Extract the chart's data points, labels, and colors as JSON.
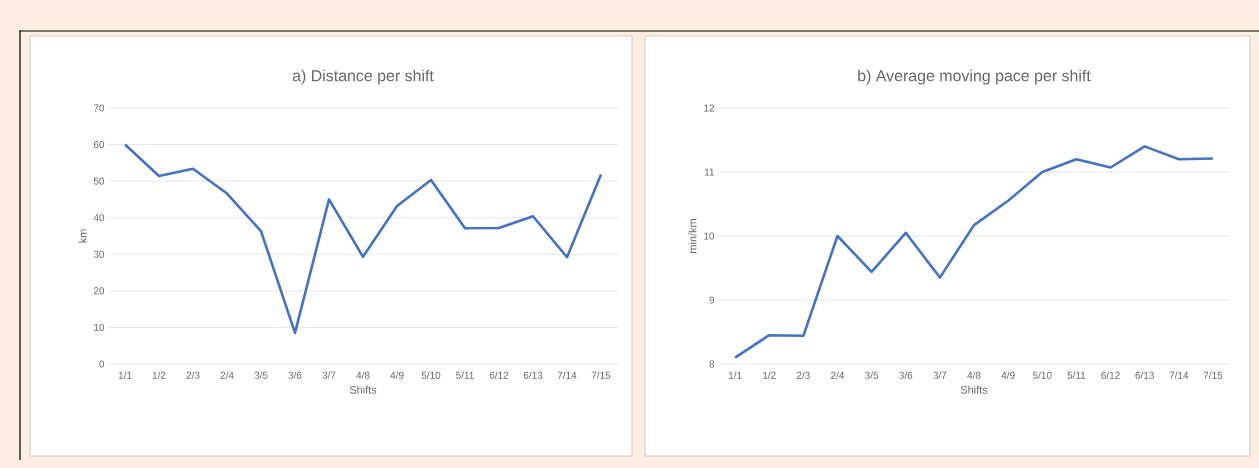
{
  "chart_data": [
    {
      "type": "line",
      "title": "a) Distance per shift",
      "xlabel": "Shifts",
      "ylabel": "km",
      "categories": [
        "1/1",
        "1/2",
        "2/3",
        "2/4",
        "3/5",
        "3/6",
        "3/7",
        "4/8",
        "4/9",
        "5/10",
        "5/11",
        "6/12",
        "6/13",
        "7/14",
        "7/15"
      ],
      "series": [
        {
          "color": "#4472c4",
          "values": [
            60,
            51.4,
            53.4,
            46.6,
            36.3,
            8.5,
            45,
            29.3,
            43.2,
            50.3,
            37.1,
            37.2,
            40.4,
            29.2,
            51.8
          ]
        }
      ],
      "ylim": [
        0,
        70
      ],
      "yticks": [
        0,
        10,
        20,
        30,
        40,
        50,
        60,
        70
      ],
      "grid": "y",
      "marker": "none",
      "line_style": "solid"
    },
    {
      "type": "line",
      "title": "b) Average moving pace per shift",
      "xlabel": "Shifts",
      "ylabel": "min/km",
      "categories": [
        "1/1",
        "1/2",
        "2/3",
        "2/4",
        "3/5",
        "3/6",
        "3/7",
        "4/8",
        "4/9",
        "5/10",
        "5/11",
        "6/12",
        "6/13",
        "7/14",
        "7/15"
      ],
      "series": [
        {
          "color": "#4472c4",
          "values": [
            8.1,
            8.45,
            8.44,
            10.0,
            9.44,
            10.05,
            9.35,
            10.17,
            10.55,
            11.0,
            11.2,
            11.07,
            11.4,
            11.2,
            11.21
          ]
        }
      ],
      "ylim": [
        8,
        12
      ],
      "yticks": [
        8,
        9,
        10,
        11,
        12
      ],
      "grid": "y",
      "marker": "none",
      "line_style": "solid"
    }
  ]
}
